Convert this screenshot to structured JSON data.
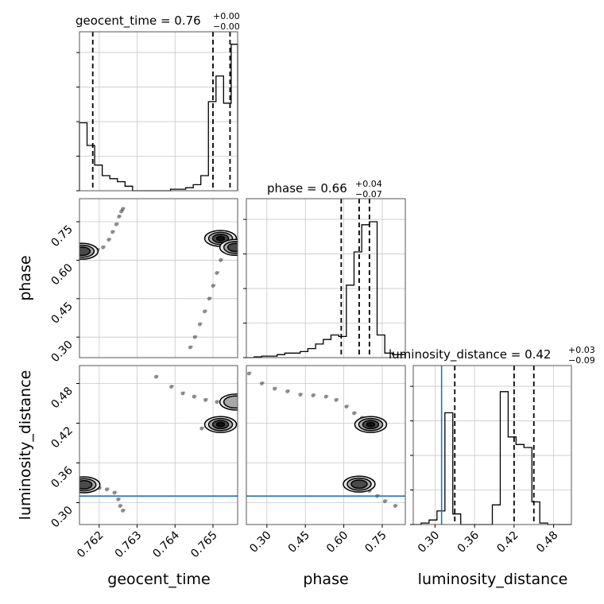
{
  "chart_data": {
    "type": "corner",
    "parameters": [
      "geocent_time",
      "phase",
      "luminosity_distance"
    ],
    "panel_titles": {
      "geocent_time": {
        "name": "geocent_time",
        "value": "0.76",
        "plus": "+0.00",
        "minus": "−0.00"
      },
      "phase": {
        "name": "phase",
        "value": "0.66",
        "plus": "+0.04",
        "minus": "−0.07"
      },
      "luminosity_distance": {
        "name": "luminosity_distance",
        "value": "0.42",
        "plus": "+0.03",
        "minus": "−0.09"
      }
    },
    "axes": {
      "geocent_time": {
        "label": "geocent_time",
        "range": [
          0.76148,
          0.76565
        ],
        "ticks": [
          0.762,
          0.763,
          0.764,
          0.765
        ],
        "tick_labels": [
          "0.762",
          "0.763",
          "0.764",
          "0.765"
        ]
      },
      "phase": {
        "label": "phase",
        "range": [
          0.22,
          0.84
        ],
        "ticks": [
          0.3,
          0.45,
          0.6,
          0.75
        ],
        "tick_labels": [
          "0.30",
          "0.45",
          "0.60",
          "0.75"
        ]
      },
      "luminosity_distance": {
        "label": "luminosity_distance",
        "range": [
          0.267,
          0.507
        ],
        "ticks": [
          0.3,
          0.36,
          0.42,
          0.48
        ],
        "tick_labels": [
          "0.30",
          "0.36",
          "0.42",
          "0.48"
        ]
      }
    },
    "injection": {
      "luminosity_distance": 0.31
    },
    "quantile_lines": {
      "geocent_time": [
        0.76183,
        0.765,
        0.76545
      ],
      "phase": [
        0.59,
        0.66,
        0.7
      ],
      "luminosity_distance": [
        0.33,
        0.42,
        0.45
      ]
    },
    "histograms": {
      "geocent_time": {
        "edges": [
          0.76148,
          0.76168,
          0.76188,
          0.76208,
          0.76228,
          0.76248,
          0.76268,
          0.76288,
          0.76308,
          0.76328,
          0.76348,
          0.76368,
          0.76388,
          0.76408,
          0.76428,
          0.76448,
          0.76468,
          0.76488,
          0.76508,
          0.76528,
          0.76548,
          0.76565
        ],
        "counts": [
          0.45,
          0.3,
          0.17,
          0.1,
          0.08,
          0.06,
          0.03,
          0.0,
          0.0,
          0.0,
          0.0,
          0.0,
          0.01,
          0.01,
          0.02,
          0.04,
          0.1,
          0.59,
          0.76,
          0.58,
          0.97
        ]
      },
      "phase": {
        "edges": [
          0.22,
          0.25,
          0.28,
          0.31,
          0.34,
          0.37,
          0.4,
          0.43,
          0.46,
          0.49,
          0.52,
          0.55,
          0.58,
          0.61,
          0.64,
          0.67,
          0.7,
          0.73,
          0.76,
          0.79,
          0.84
        ],
        "counts": [
          0.0,
          0.005,
          0.01,
          0.01,
          0.02,
          0.03,
          0.03,
          0.04,
          0.06,
          0.09,
          0.12,
          0.15,
          0.14,
          0.48,
          0.7,
          0.88,
          0.9,
          0.15,
          0.03,
          0.02
        ]
      },
      "luminosity_distance": {
        "edges": [
          0.267,
          0.279,
          0.291,
          0.303,
          0.315,
          0.327,
          0.339,
          0.351,
          0.363,
          0.375,
          0.387,
          0.399,
          0.411,
          0.423,
          0.435,
          0.447,
          0.459,
          0.471,
          0.483,
          0.495,
          0.507
        ],
        "counts": [
          0.0,
          0.01,
          0.03,
          0.09,
          0.74,
          0.07,
          0.0,
          0.0,
          0.0,
          0.0,
          0.13,
          0.88,
          0.58,
          0.53,
          0.51,
          0.15,
          0.01,
          0.0,
          0.0,
          0.0
        ]
      }
    },
    "scatter_2d": {
      "phase_vs_geocent_time": {
        "x": [
          0.76158,
          0.7618,
          0.76195,
          0.7621,
          0.76225,
          0.76235,
          0.76245,
          0.76252,
          0.76258,
          0.76262,
          0.7644,
          0.76452,
          0.76465,
          0.76478,
          0.7649,
          0.765,
          0.7651,
          0.7652,
          0.7653,
          0.7654,
          0.765,
          0.76515
        ],
        "y": [
          0.62,
          0.63,
          0.64,
          0.65,
          0.68,
          0.71,
          0.74,
          0.77,
          0.79,
          0.8,
          0.26,
          0.3,
          0.35,
          0.4,
          0.45,
          0.5,
          0.55,
          0.6,
          0.64,
          0.66,
          0.67,
          0.69
        ]
      },
      "luminosity_distance_vs_geocent_time": {
        "x": [
          0.76152,
          0.76175,
          0.762,
          0.7622,
          0.7624,
          0.7625,
          0.76255,
          0.76262,
          0.7635,
          0.7639,
          0.7642,
          0.7645,
          0.7648,
          0.7651,
          0.7654,
          0.7647,
          0.765,
          0.7653
        ],
        "y": [
          0.325,
          0.325,
          0.322,
          0.32,
          0.315,
          0.305,
          0.295,
          0.288,
          0.49,
          0.475,
          0.465,
          0.46,
          0.455,
          0.452,
          0.448,
          0.412,
          0.418,
          0.422
        ]
      },
      "luminosity_distance_vs_phase": {
        "x": [
          0.23,
          0.28,
          0.33,
          0.38,
          0.43,
          0.48,
          0.53,
          0.57,
          0.61,
          0.64,
          0.67,
          0.7,
          0.68,
          0.62,
          0.66,
          0.7,
          0.73,
          0.76,
          0.8
        ],
        "y": [
          0.495,
          0.48,
          0.472,
          0.468,
          0.463,
          0.462,
          0.46,
          0.455,
          0.445,
          0.435,
          0.428,
          0.42,
          0.415,
          0.33,
          0.325,
          0.318,
          0.31,
          0.302,
          0.295
        ]
      }
    },
    "contour_cores_2d": {
      "phase_vs_geocent_time": [
        {
          "x": 0.76155,
          "y": 0.635,
          "level": 2
        },
        {
          "x": 0.7652,
          "y": 0.685,
          "level": 3
        },
        {
          "x": 0.7656,
          "y": 0.65,
          "level": 2
        }
      ],
      "luminosity_distance_vs_geocent_time": [
        {
          "x": 0.7616,
          "y": 0.327,
          "level": 2
        },
        {
          "x": 0.7652,
          "y": 0.418,
          "level": 3
        },
        {
          "x": 0.7656,
          "y": 0.452,
          "level": 1
        }
      ],
      "luminosity_distance_vs_phase": [
        {
          "x": 0.705,
          "y": 0.418,
          "level": 3
        },
        {
          "x": 0.66,
          "y": 0.328,
          "level": 2
        }
      ]
    }
  }
}
